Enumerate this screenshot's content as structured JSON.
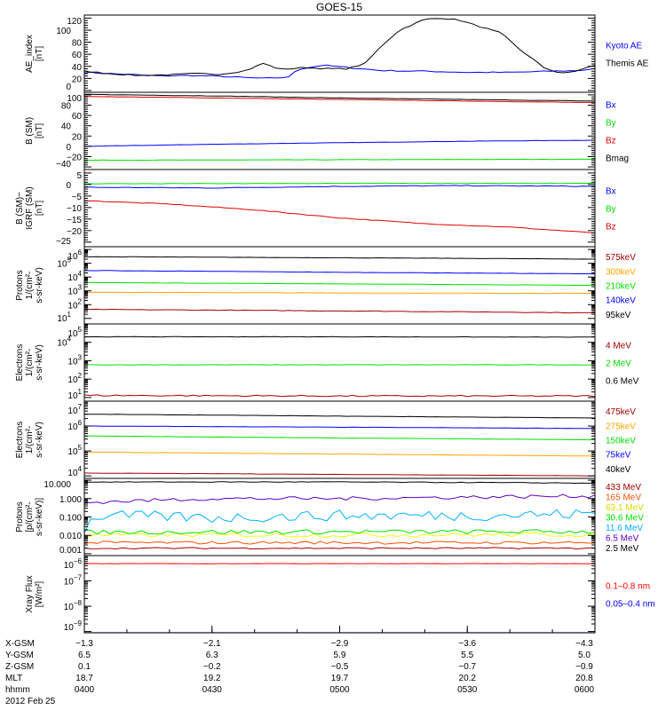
{
  "chart_data": {
    "type": "line",
    "title": "GOES-15",
    "x_unit": "minutes after 0400 UT",
    "xlim": [
      0,
      120
    ],
    "x_ticks": [
      0,
      30,
      60,
      90,
      120
    ],
    "footer": {
      "rows": [
        {
          "label": "X-GSM",
          "values": [
            "-1.3",
            "-2.1",
            "-2.9",
            "-3.6",
            "-4.3"
          ]
        },
        {
          "label": "Y-GSM",
          "values": [
            "6.5",
            "6.3",
            "5.9",
            "5.5",
            "5.0"
          ]
        },
        {
          "label": "Z-GSM",
          "values": [
            "0.1",
            "-0.2",
            "-0.5",
            "-0.7",
            "-0.9"
          ]
        },
        {
          "label": "MLT",
          "values": [
            "18.7",
            "19.2",
            "19.7",
            "20.2",
            "20.8"
          ]
        },
        {
          "label": "hhmm",
          "values": [
            "0400",
            "0430",
            "0500",
            "0530",
            "0600"
          ]
        }
      ],
      "date": "2012 Feb 25"
    },
    "panels": [
      {
        "ylabel": [
          "AE_index",
          "[nT]"
        ],
        "scale": "linear",
        "ylim": [
          -3,
          125
        ],
        "ticks": [
          0,
          20,
          40,
          60,
          80,
          100,
          120
        ],
        "series": [
          {
            "name": "Kyoto AE",
            "color": "#0000ff",
            "noise": 1,
            "points": [
              [
                0,
                30
              ],
              [
                6,
                28
              ],
              [
                12,
                26
              ],
              [
                18,
                24
              ],
              [
                24,
                25
              ],
              [
                30,
                24
              ],
              [
                36,
                22
              ],
              [
                42,
                20
              ],
              [
                48,
                22
              ],
              [
                50,
                35
              ],
              [
                56,
                42
              ],
              [
                62,
                38
              ],
              [
                70,
                33
              ],
              [
                80,
                32
              ],
              [
                90,
                30
              ],
              [
                100,
                30
              ],
              [
                110,
                32
              ],
              [
                116,
                33
              ],
              [
                120,
                36
              ]
            ]
          },
          {
            "name": "Themis AE",
            "color": "#000000",
            "noise": 1,
            "points": [
              [
                0,
                32
              ],
              [
                6,
                28
              ],
              [
                12,
                25
              ],
              [
                20,
                26
              ],
              [
                26,
                28
              ],
              [
                32,
                27
              ],
              [
                38,
                33
              ],
              [
                42,
                45
              ],
              [
                46,
                35
              ],
              [
                52,
                38
              ],
              [
                58,
                36
              ],
              [
                62,
                36
              ],
              [
                66,
                45
              ],
              [
                70,
                75
              ],
              [
                74,
                100
              ],
              [
                80,
                118
              ],
              [
                84,
                120
              ],
              [
                88,
                117
              ],
              [
                92,
                108
              ],
              [
                98,
                95
              ],
              [
                102,
                70
              ],
              [
                108,
                38
              ],
              [
                112,
                28
              ],
              [
                116,
                33
              ],
              [
                120,
                42
              ]
            ]
          }
        ]
      },
      {
        "ylabel": [
          "B (SM)",
          "[nT]"
        ],
        "scale": "linear",
        "ylim": [
          -45,
          105
        ],
        "ticks": [
          -40,
          -20,
          0,
          20,
          40,
          60,
          80,
          100
        ],
        "series": [
          {
            "name": "Bx",
            "color": "#0000ff",
            "noise": 0.3,
            "points": [
              [
                0,
                0
              ],
              [
                30,
                4
              ],
              [
                60,
                7
              ],
              [
                90,
                10
              ],
              [
                120,
                12
              ]
            ]
          },
          {
            "name": "By",
            "color": "#00e000",
            "noise": 0.3,
            "points": [
              [
                0,
                -27
              ],
              [
                60,
                -26
              ],
              [
                120,
                -25
              ]
            ]
          },
          {
            "name": "Bz",
            "color": "#e00000",
            "noise": 0.3,
            "points": [
              [
                0,
                97
              ],
              [
                30,
                94
              ],
              [
                60,
                91
              ],
              [
                90,
                88
              ],
              [
                120,
                85
              ]
            ]
          },
          {
            "name": "Bmag",
            "color": "#000000",
            "noise": 0.3,
            "points": [
              [
                0,
                101
              ],
              [
                30,
                98
              ],
              [
                60,
                94
              ],
              [
                90,
                91
              ],
              [
                120,
                88
              ]
            ]
          }
        ]
      },
      {
        "ylabel": [
          "B (SM)−IGRF (SM)",
          "[nT]"
        ],
        "scale": "linear",
        "ylim": [
          -27,
          6.5
        ],
        "ticks": [
          -25,
          -20,
          -15,
          -10,
          -5,
          0,
          5
        ],
        "series": [
          {
            "name": "Bx",
            "color": "#0000ff",
            "noise": 0.15,
            "points": [
              [
                0,
                -1.2
              ],
              [
                30,
                -1.5
              ],
              [
                60,
                -0.8
              ],
              [
                90,
                -0.5
              ],
              [
                120,
                -0.8
              ]
            ]
          },
          {
            "name": "By",
            "color": "#00e000",
            "noise": 0.1,
            "points": [
              [
                0,
                0.3
              ],
              [
                60,
                0.5
              ],
              [
                120,
                0.5
              ]
            ]
          },
          {
            "name": "Bz",
            "color": "#e00000",
            "noise": 0.15,
            "points": [
              [
                0,
                -7
              ],
              [
                20,
                -8.5
              ],
              [
                40,
                -11
              ],
              [
                60,
                -14.5
              ],
              [
                80,
                -17
              ],
              [
                100,
                -18.5
              ],
              [
                120,
                -21
              ]
            ]
          }
        ]
      },
      {
        "ylabel": [
          "Protons",
          "1/(cm²-s-sr-keV)"
        ],
        "scale": "log",
        "ylim_exp": [
          0.6,
          6.2
        ],
        "ticks_exp": [
          1,
          2,
          3,
          4,
          5,
          6
        ],
        "series": [
          {
            "name": "575keV",
            "color": "#a00000",
            "noise": 0.02,
            "points": [
              [
                0,
                45
              ],
              [
                30,
                40
              ],
              [
                60,
                35
              ],
              [
                90,
                30
              ],
              [
                120,
                25
              ]
            ]
          },
          {
            "name": "300keV",
            "color": "#ffa500",
            "noise": 0.01,
            "points": [
              [
                0,
                800
              ],
              [
                60,
                700
              ],
              [
                120,
                650
              ]
            ]
          },
          {
            "name": "210keV",
            "color": "#00e000",
            "noise": 0.01,
            "points": [
              [
                0,
                4000
              ],
              [
                60,
                3200
              ],
              [
                120,
                2500
              ]
            ]
          },
          {
            "name": "140keV",
            "color": "#0000ff",
            "noise": 0.01,
            "points": [
              [
                0,
                30000
              ],
              [
                60,
                22000
              ],
              [
                120,
                17000
              ]
            ]
          },
          {
            "name": "95keV",
            "color": "#000000",
            "noise": 0.01,
            "points": [
              [
                0,
                300000
              ],
              [
                60,
                250000
              ],
              [
                120,
                200000
              ]
            ]
          }
        ]
      },
      {
        "ylabel": [
          "Electrons",
          "1/(cm²-s-sr-keV)"
        ],
        "scale": "log",
        "ylim_exp": [
          0.8,
          5
        ],
        "ticks_exp": [
          1,
          2,
          3,
          4,
          5
        ],
        "series": [
          {
            "name": "4 MeV",
            "color": "#a00000",
            "noise": 0.04,
            "points": [
              [
                0,
                13
              ],
              [
                60,
                12
              ],
              [
                120,
                12
              ]
            ]
          },
          {
            "name": "2 MeV",
            "color": "#00e000",
            "noise": 0.01,
            "points": [
              [
                0,
                600
              ],
              [
                60,
                600
              ],
              [
                120,
                600
              ]
            ]
          },
          {
            "name": "0.6 MeV",
            "color": "#000000",
            "noise": 0.01,
            "points": [
              [
                0,
                20000
              ],
              [
                60,
                20000
              ],
              [
                120,
                19000
              ]
            ]
          }
        ]
      },
      {
        "ylabel": [
          "Electrons",
          "1/(cm²-s-sr-keV)"
        ],
        "scale": "log",
        "ylim_exp": [
          3.9,
          7
        ],
        "ticks_exp": [
          4,
          5,
          6,
          7
        ],
        "series": [
          {
            "name": "475keV",
            "color": "#a00000",
            "noise": 0.005,
            "points": [
              [
                0,
                13000
              ],
              [
                60,
                11500
              ],
              [
                120,
                10000
              ]
            ]
          },
          {
            "name": "275keV",
            "color": "#ffa500",
            "noise": 0.005,
            "points": [
              [
                0,
                90000
              ],
              [
                60,
                75000
              ],
              [
                120,
                62000
              ]
            ]
          },
          {
            "name": "150keV",
            "color": "#00e000",
            "noise": 0.005,
            "points": [
              [
                0,
                400000
              ],
              [
                60,
                330000
              ],
              [
                120,
                280000
              ]
            ]
          },
          {
            "name": "75keV",
            "color": "#0000ff",
            "noise": 0.005,
            "points": [
              [
                0,
                1000000
              ],
              [
                60,
                900000
              ],
              [
                120,
                800000
              ]
            ]
          },
          {
            "name": "40keV",
            "color": "#000000",
            "noise": 0.005,
            "points": [
              [
                0,
                3000000
              ],
              [
                60,
                2500000
              ],
              [
                120,
                2100000
              ]
            ]
          }
        ]
      },
      {
        "ylabel": [
          "Protons",
          "[p/(cm²-s-sr-keV)]"
        ],
        "scale": "log",
        "ylim_exp": [
          -3.1,
          1.1
        ],
        "ticks_exp": [
          -3,
          -2,
          -1,
          0,
          1
        ],
        "tick_labels": [
          "0.001",
          "0.010",
          "0.100",
          "1.000",
          "10.000"
        ],
        "series": [
          {
            "name": "433 MeV",
            "color": "#a00000",
            "noise": 0.04,
            "points": [
              [
                0,
                0.002
              ],
              [
                120,
                0.002
              ]
            ]
          },
          {
            "name": "165 MeV",
            "color": "#ff5000",
            "noise": 0.08,
            "points": [
              [
                0,
                0.004
              ],
              [
                120,
                0.004
              ]
            ]
          },
          {
            "name": "63.1 MeV",
            "color": "#ffff00",
            "noise": 0.12,
            "points": [
              [
                0,
                0.01
              ],
              [
                120,
                0.011
              ]
            ]
          },
          {
            "name": "30.6 MeV",
            "color": "#00e000",
            "noise": 0.12,
            "points": [
              [
                0,
                0.015
              ],
              [
                120,
                0.016
              ]
            ]
          },
          {
            "name": "11.6 MeV",
            "color": "#00b0ff",
            "noise": 0.3,
            "points": [
              [
                0,
                0.02
              ],
              [
                4,
                0.12
              ],
              [
                30,
                0.09
              ],
              [
                60,
                0.12
              ],
              [
                90,
                0.12
              ],
              [
                120,
                0.15
              ]
            ]
          },
          {
            "name": "6.5 MeV",
            "color": "#6000c0",
            "noise": 0.1,
            "points": [
              [
                0,
                0.6
              ],
              [
                30,
                1.0
              ],
              [
                60,
                1.0
              ],
              [
                90,
                1.2
              ],
              [
                120,
                1.4
              ]
            ]
          },
          {
            "name": "2.5 MeV",
            "color": "#000000",
            "noise": 0.02,
            "points": [
              [
                0,
                8
              ],
              [
                60,
                8
              ],
              [
                120,
                7
              ]
            ]
          }
        ]
      },
      {
        "ylabel": [
          "Xray Flux",
          "[W/m²]"
        ],
        "scale": "log",
        "ylim_exp": [
          -9.05,
          -6
        ],
        "ticks_exp": [
          -9,
          -8,
          -7,
          -6
        ],
        "series": [
          {
            "name": "0.1–0.8 nm",
            "color": "#ff0000",
            "noise": 0.005,
            "points": [
              [
                0,
                4.8e-07
              ],
              [
                120,
                4.8e-07
              ]
            ]
          },
          {
            "name": "0.05–0.4 nm",
            "color": "#0000ff",
            "noise": 0,
            "points": [
              [
                0,
                9e-10
              ],
              [
                120,
                9e-10
              ]
            ]
          }
        ]
      }
    ]
  }
}
